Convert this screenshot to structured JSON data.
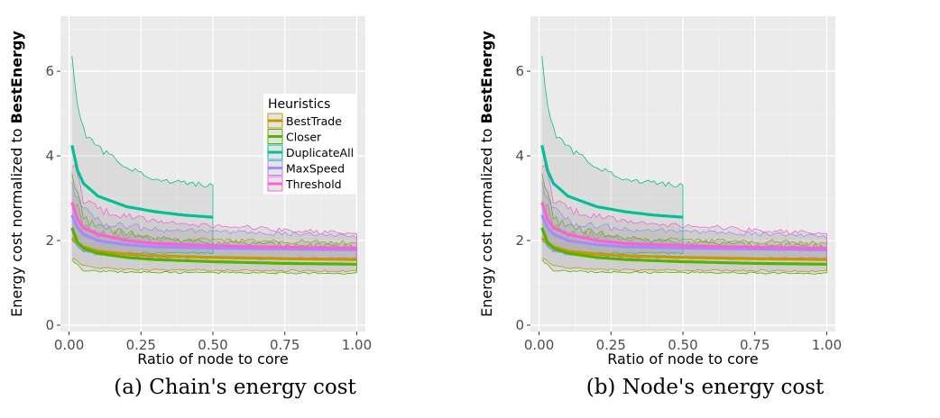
{
  "chart_data": [
    {
      "type": "line",
      "caption": "(a) Chain's energy cost",
      "xlabel": "Ratio of node to core",
      "ylabel_prefix": "Energy cost normalized to ",
      "ylabel_bold": "BestEnergy",
      "xlim": [
        -0.03,
        1.03
      ],
      "ylim": [
        -0.15,
        7.3
      ],
      "x_ticks": [
        0,
        0.25,
        0.5,
        0.75,
        1
      ],
      "x_tick_labels": [
        "0.00",
        "0.25",
        "0.50",
        "0.75",
        "1.00"
      ],
      "y_ticks": [
        0,
        2,
        4,
        6
      ],
      "y_tick_labels": [
        "0",
        "2",
        "4",
        "6"
      ],
      "grid": true,
      "legend": {
        "title": "Heuristics",
        "placement": "top-right"
      },
      "series": [
        {
          "name": "BestTrade",
          "color": "#c49a00",
          "x_max": 1.0,
          "mean": [
            [
              0.01,
              2.05
            ],
            [
              0.03,
              1.95
            ],
            [
              0.05,
              1.85
            ],
            [
              0.1,
              1.75
            ],
            [
              0.2,
              1.68
            ],
            [
              0.3,
              1.64
            ],
            [
              0.5,
              1.6
            ],
            [
              0.75,
              1.57
            ],
            [
              1.0,
              1.55
            ]
          ],
          "lower": [
            [
              0.01,
              1.6
            ],
            [
              0.05,
              1.4
            ],
            [
              0.1,
              1.35
            ],
            [
              0.3,
              1.3
            ],
            [
              0.5,
              1.3
            ],
            [
              1.0,
              1.28
            ]
          ],
          "upper": [
            [
              0.01,
              3.1
            ],
            [
              0.05,
              2.4
            ],
            [
              0.1,
              2.2
            ],
            [
              0.3,
              2.05
            ],
            [
              0.5,
              2.0
            ],
            [
              1.0,
              1.95
            ]
          ]
        },
        {
          "name": "Closer",
          "color": "#53b400",
          "x_max": 1.0,
          "mean": [
            [
              0.01,
              2.3
            ],
            [
              0.03,
              1.95
            ],
            [
              0.05,
              1.82
            ],
            [
              0.1,
              1.7
            ],
            [
              0.2,
              1.6
            ],
            [
              0.3,
              1.55
            ],
            [
              0.5,
              1.5
            ],
            [
              0.75,
              1.46
            ],
            [
              1.0,
              1.44
            ]
          ],
          "lower": [
            [
              0.01,
              1.55
            ],
            [
              0.05,
              1.3
            ],
            [
              0.1,
              1.27
            ],
            [
              0.3,
              1.25
            ],
            [
              0.5,
              1.24
            ],
            [
              1.0,
              1.22
            ]
          ],
          "upper": [
            [
              0.01,
              3.5
            ],
            [
              0.05,
              2.6
            ],
            [
              0.1,
              2.3
            ],
            [
              0.3,
              2.05
            ],
            [
              0.5,
              1.95
            ],
            [
              1.0,
              1.85
            ]
          ]
        },
        {
          "name": "DuplicateAll",
          "color": "#00c094",
          "x_max": 0.5,
          "mean": [
            [
              0.01,
              4.25
            ],
            [
              0.03,
              3.65
            ],
            [
              0.05,
              3.35
            ],
            [
              0.1,
              3.05
            ],
            [
              0.2,
              2.8
            ],
            [
              0.3,
              2.68
            ],
            [
              0.4,
              2.6
            ],
            [
              0.5,
              2.55
            ]
          ],
          "lower": [
            [
              0.01,
              2.0
            ],
            [
              0.05,
              1.75
            ],
            [
              0.1,
              1.7
            ],
            [
              0.3,
              1.7
            ],
            [
              0.5,
              1.7
            ]
          ],
          "upper": [
            [
              0.01,
              6.25
            ],
            [
              0.03,
              5.3
            ],
            [
              0.05,
              4.6
            ],
            [
              0.1,
              4.2
            ],
            [
              0.2,
              3.7
            ],
            [
              0.3,
              3.45
            ],
            [
              0.4,
              3.35
            ],
            [
              0.5,
              3.3
            ]
          ]
        },
        {
          "name": "MaxSpeed",
          "color": "#a58aff",
          "x_max": 1.0,
          "mean": [
            [
              0.01,
              2.6
            ],
            [
              0.03,
              2.3
            ],
            [
              0.05,
              2.15
            ],
            [
              0.1,
              2.0
            ],
            [
              0.2,
              1.9
            ],
            [
              0.3,
              1.85
            ],
            [
              0.5,
              1.82
            ],
            [
              0.75,
              1.8
            ],
            [
              1.0,
              1.78
            ]
          ],
          "lower": [
            [
              0.01,
              2.0
            ],
            [
              0.05,
              1.75
            ],
            [
              0.1,
              1.65
            ],
            [
              0.3,
              1.6
            ],
            [
              0.5,
              1.58
            ],
            [
              1.0,
              1.55
            ]
          ],
          "upper": [
            [
              0.01,
              3.3
            ],
            [
              0.05,
              2.7
            ],
            [
              0.1,
              2.45
            ],
            [
              0.3,
              2.25
            ],
            [
              0.5,
              2.2
            ],
            [
              1.0,
              2.1
            ]
          ]
        },
        {
          "name": "Threshold",
          "color": "#fb61d7",
          "x_max": 1.0,
          "mean": [
            [
              0.01,
              2.9
            ],
            [
              0.03,
              2.5
            ],
            [
              0.05,
              2.3
            ],
            [
              0.1,
              2.15
            ],
            [
              0.2,
              2.0
            ],
            [
              0.3,
              1.93
            ],
            [
              0.5,
              1.88
            ],
            [
              0.75,
              1.84
            ],
            [
              1.0,
              1.82
            ]
          ],
          "lower": [
            [
              0.01,
              2.1
            ],
            [
              0.05,
              1.8
            ],
            [
              0.1,
              1.7
            ],
            [
              0.3,
              1.62
            ],
            [
              0.5,
              1.6
            ],
            [
              1.0,
              1.58
            ]
          ],
          "upper": [
            [
              0.01,
              3.9
            ],
            [
              0.05,
              3.0
            ],
            [
              0.1,
              2.7
            ],
            [
              0.3,
              2.45
            ],
            [
              0.5,
              2.35
            ],
            [
              1.0,
              2.15
            ]
          ]
        }
      ]
    },
    {
      "type": "line",
      "caption": "(b) Node's energy cost",
      "xlabel": "Ratio of node to core",
      "ylabel_prefix": "Energy cost normalized to ",
      "ylabel_bold": "BestEnergy",
      "xlim": [
        -0.03,
        1.03
      ],
      "ylim": [
        -0.15,
        7.3
      ],
      "x_ticks": [
        0,
        0.25,
        0.5,
        0.75,
        1
      ],
      "x_tick_labels": [
        "0.00",
        "0.25",
        "0.50",
        "0.75",
        "1.00"
      ],
      "y_ticks": [
        0,
        2,
        4,
        6
      ],
      "y_tick_labels": [
        "0",
        "2",
        "4",
        "6"
      ],
      "grid": true,
      "legend": null,
      "series": [
        {
          "name": "BestTrade",
          "color": "#c49a00",
          "x_max": 1.0,
          "mean": [
            [
              0.01,
              2.05
            ],
            [
              0.03,
              1.95
            ],
            [
              0.05,
              1.85
            ],
            [
              0.1,
              1.75
            ],
            [
              0.2,
              1.68
            ],
            [
              0.3,
              1.64
            ],
            [
              0.5,
              1.6
            ],
            [
              0.75,
              1.57
            ],
            [
              1.0,
              1.55
            ]
          ],
          "lower": [
            [
              0.01,
              1.6
            ],
            [
              0.05,
              1.4
            ],
            [
              0.1,
              1.35
            ],
            [
              0.3,
              1.3
            ],
            [
              0.5,
              1.3
            ],
            [
              1.0,
              1.28
            ]
          ],
          "upper": [
            [
              0.01,
              3.1
            ],
            [
              0.05,
              2.4
            ],
            [
              0.1,
              2.2
            ],
            [
              0.3,
              2.05
            ],
            [
              0.5,
              2.0
            ],
            [
              1.0,
              1.95
            ]
          ]
        },
        {
          "name": "Closer",
          "color": "#53b400",
          "x_max": 1.0,
          "mean": [
            [
              0.01,
              2.3
            ],
            [
              0.03,
              1.95
            ],
            [
              0.05,
              1.82
            ],
            [
              0.1,
              1.7
            ],
            [
              0.2,
              1.6
            ],
            [
              0.3,
              1.55
            ],
            [
              0.5,
              1.5
            ],
            [
              0.75,
              1.46
            ],
            [
              1.0,
              1.44
            ]
          ],
          "lower": [
            [
              0.01,
              1.55
            ],
            [
              0.05,
              1.3
            ],
            [
              0.1,
              1.27
            ],
            [
              0.3,
              1.25
            ],
            [
              0.5,
              1.24
            ],
            [
              1.0,
              1.22
            ]
          ],
          "upper": [
            [
              0.01,
              3.5
            ],
            [
              0.05,
              2.6
            ],
            [
              0.1,
              2.3
            ],
            [
              0.3,
              2.05
            ],
            [
              0.5,
              1.95
            ],
            [
              1.0,
              1.85
            ]
          ]
        },
        {
          "name": "DuplicateAll",
          "color": "#00c094",
          "x_max": 0.5,
          "mean": [
            [
              0.01,
              4.25
            ],
            [
              0.03,
              3.65
            ],
            [
              0.05,
              3.35
            ],
            [
              0.1,
              3.05
            ],
            [
              0.2,
              2.8
            ],
            [
              0.3,
              2.68
            ],
            [
              0.4,
              2.6
            ],
            [
              0.5,
              2.55
            ]
          ],
          "lower": [
            [
              0.01,
              2.0
            ],
            [
              0.05,
              1.75
            ],
            [
              0.1,
              1.7
            ],
            [
              0.3,
              1.7
            ],
            [
              0.5,
              1.7
            ]
          ],
          "upper": [
            [
              0.01,
              6.25
            ],
            [
              0.03,
              5.3
            ],
            [
              0.05,
              4.6
            ],
            [
              0.1,
              4.2
            ],
            [
              0.2,
              3.7
            ],
            [
              0.3,
              3.45
            ],
            [
              0.4,
              3.35
            ],
            [
              0.5,
              3.3
            ]
          ]
        },
        {
          "name": "MaxSpeed",
          "color": "#a58aff",
          "x_max": 1.0,
          "mean": [
            [
              0.01,
              2.6
            ],
            [
              0.03,
              2.3
            ],
            [
              0.05,
              2.15
            ],
            [
              0.1,
              2.0
            ],
            [
              0.2,
              1.9
            ],
            [
              0.3,
              1.85
            ],
            [
              0.5,
              1.82
            ],
            [
              0.75,
              1.8
            ],
            [
              1.0,
              1.78
            ]
          ],
          "lower": [
            [
              0.01,
              2.0
            ],
            [
              0.05,
              1.75
            ],
            [
              0.1,
              1.65
            ],
            [
              0.3,
              1.6
            ],
            [
              0.5,
              1.58
            ],
            [
              1.0,
              1.55
            ]
          ],
          "upper": [
            [
              0.01,
              3.3
            ],
            [
              0.05,
              2.7
            ],
            [
              0.1,
              2.45
            ],
            [
              0.3,
              2.25
            ],
            [
              0.5,
              2.2
            ],
            [
              1.0,
              2.1
            ]
          ]
        },
        {
          "name": "Threshold",
          "color": "#fb61d7",
          "x_max": 1.0,
          "mean": [
            [
              0.01,
              2.9
            ],
            [
              0.03,
              2.5
            ],
            [
              0.05,
              2.3
            ],
            [
              0.1,
              2.15
            ],
            [
              0.2,
              2.0
            ],
            [
              0.3,
              1.93
            ],
            [
              0.5,
              1.88
            ],
            [
              0.75,
              1.84
            ],
            [
              1.0,
              1.82
            ]
          ],
          "lower": [
            [
              0.01,
              2.1
            ],
            [
              0.05,
              1.8
            ],
            [
              0.1,
              1.7
            ],
            [
              0.3,
              1.62
            ],
            [
              0.5,
              1.6
            ],
            [
              1.0,
              1.58
            ]
          ],
          "upper": [
            [
              0.01,
              3.9
            ],
            [
              0.05,
              3.0
            ],
            [
              0.1,
              2.7
            ],
            [
              0.3,
              2.45
            ],
            [
              0.5,
              2.35
            ],
            [
              1.0,
              2.15
            ]
          ]
        }
      ]
    }
  ]
}
